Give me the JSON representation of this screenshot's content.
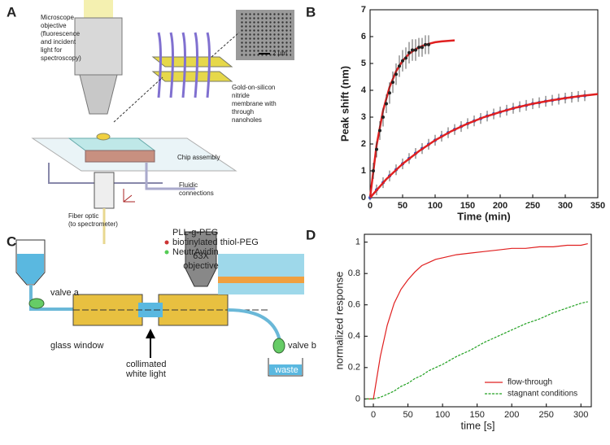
{
  "panels": {
    "a": "A",
    "b": "B",
    "c": "C",
    "d": "D"
  },
  "diagram_a": {
    "objective": [
      "Microscope",
      "objective",
      "(fluorescence",
      "and incident",
      "light for",
      "spectroscopy)"
    ],
    "scale": "2 µm",
    "membrane": [
      "Gold-on-silicon",
      "nitride",
      "membrane with",
      "through",
      "nanoholes"
    ],
    "chip": "Chip assembly",
    "fluidic": [
      "Fluidic",
      "connections"
    ],
    "fiber": [
      "Fiber optic",
      "(to spectrometer)"
    ]
  },
  "diagram_c": {
    "legend": [
      "PLL-g-PEG",
      "biotinylated thiol-PEG",
      "NeutrAvidin"
    ],
    "objective": [
      "63X",
      "objective"
    ],
    "valve_a": "valve a",
    "valve_b": "valve b",
    "window": "glass window",
    "light": [
      "collimated",
      "white light"
    ],
    "waste": "waste"
  },
  "chart_data": [
    {
      "type": "line",
      "xlabel": "Time (min)",
      "ylabel": "Peak shift (nm)",
      "xlim": [
        0,
        350
      ],
      "ylim": [
        0,
        7
      ],
      "xticks": [
        0,
        50,
        100,
        150,
        200,
        250,
        300,
        350
      ],
      "yticks": [
        0,
        1,
        2,
        3,
        4,
        5,
        6,
        7
      ],
      "series": [
        {
          "color": "#e02020",
          "x": [
            0,
            10,
            20,
            30,
            40,
            50,
            60,
            70,
            80,
            90,
            100,
            110,
            120,
            130
          ],
          "values": [
            0,
            1.95,
            3.25,
            4.12,
            4.71,
            5.1,
            5.36,
            5.53,
            5.65,
            5.73,
            5.79,
            5.82,
            5.84,
            5.86
          ]
        },
        {
          "color": "#222222",
          "x": [
            5,
            10,
            15,
            20,
            25,
            30,
            35,
            40,
            45,
            50,
            55,
            60,
            65,
            70,
            75,
            80,
            85,
            90
          ],
          "values": [
            1.0,
            1.8,
            2.5,
            3.0,
            3.5,
            3.9,
            4.3,
            4.6,
            4.9,
            5.1,
            5.2,
            5.4,
            5.5,
            5.5,
            5.6,
            5.6,
            5.7,
            5.7
          ],
          "errors": [
            0.3,
            0.3,
            0.35,
            0.35,
            0.35,
            0.4,
            0.4,
            0.4,
            0.4,
            0.4,
            0.4,
            0.4,
            0.4,
            0.4,
            0.35,
            0.35,
            0.35,
            0.35
          ]
        },
        {
          "color": "#3050c0",
          "x": [
            0,
            10,
            20,
            30,
            40,
            50,
            60,
            70,
            80,
            90,
            100,
            110,
            120,
            130,
            140,
            150,
            160,
            170,
            180,
            190,
            200,
            210,
            220,
            230,
            240,
            250,
            260,
            270,
            280,
            290,
            300,
            310,
            320,
            330
          ],
          "values": [
            0,
            0.29,
            0.56,
            0.81,
            1.04,
            1.26,
            1.46,
            1.65,
            1.83,
            1.99,
            2.14,
            2.29,
            2.42,
            2.54,
            2.65,
            2.76,
            2.86,
            2.95,
            3.04,
            3.12,
            3.19,
            3.26,
            3.33,
            3.39,
            3.44,
            3.5,
            3.54,
            3.59,
            3.63,
            3.67,
            3.71,
            3.74,
            3.77,
            3.8
          ],
          "errors": [
            0.1,
            0.2,
            0.2,
            0.2,
            0.2,
            0.2,
            0.2,
            0.2,
            0.2,
            0.2,
            0.2,
            0.2,
            0.2,
            0.2,
            0.2,
            0.2,
            0.2,
            0.2,
            0.2,
            0.2,
            0.2,
            0.2,
            0.2,
            0.2,
            0.2,
            0.2,
            0.2,
            0.2,
            0.2,
            0.2,
            0.2,
            0.2,
            0.2,
            0.2
          ]
        },
        {
          "color": "#e02020",
          "x": [
            0,
            25,
            50,
            75,
            100,
            125,
            150,
            175,
            200,
            225,
            250,
            275,
            300,
            325,
            350
          ],
          "values": [
            0,
            0.69,
            1.26,
            1.73,
            2.14,
            2.48,
            2.76,
            3.0,
            3.19,
            3.36,
            3.5,
            3.61,
            3.71,
            3.79,
            3.86
          ]
        }
      ]
    },
    {
      "type": "line",
      "xlabel": "time [s]",
      "ylabel": "normalized response",
      "xlim": [
        -13,
        315
      ],
      "ylim": [
        -0.05,
        1.05
      ],
      "xticks": [
        0,
        50,
        100,
        150,
        200,
        250,
        300
      ],
      "yticks": [
        0,
        0.2,
        0.4,
        0.6,
        0.8,
        1
      ],
      "legend": "lower right",
      "x": [
        -10,
        0,
        10,
        20,
        30,
        40,
        50,
        60,
        70,
        80,
        90,
        100,
        120,
        140,
        160,
        180,
        200,
        220,
        240,
        260,
        280,
        300,
        310
      ],
      "series": [
        {
          "name": "flow-through",
          "color": "#e02020",
          "values": [
            0,
            0,
            0.27,
            0.47,
            0.61,
            0.7,
            0.76,
            0.81,
            0.85,
            0.87,
            0.89,
            0.9,
            0.92,
            0.93,
            0.94,
            0.95,
            0.96,
            0.96,
            0.97,
            0.97,
            0.98,
            0.98,
            0.99
          ]
        },
        {
          "name": "stagnant conditions",
          "color": "#20a020",
          "values": [
            0,
            0,
            0.01,
            0.03,
            0.05,
            0.08,
            0.1,
            0.13,
            0.15,
            0.18,
            0.2,
            0.22,
            0.27,
            0.31,
            0.36,
            0.4,
            0.44,
            0.48,
            0.51,
            0.55,
            0.58,
            0.61,
            0.62
          ]
        }
      ]
    }
  ]
}
